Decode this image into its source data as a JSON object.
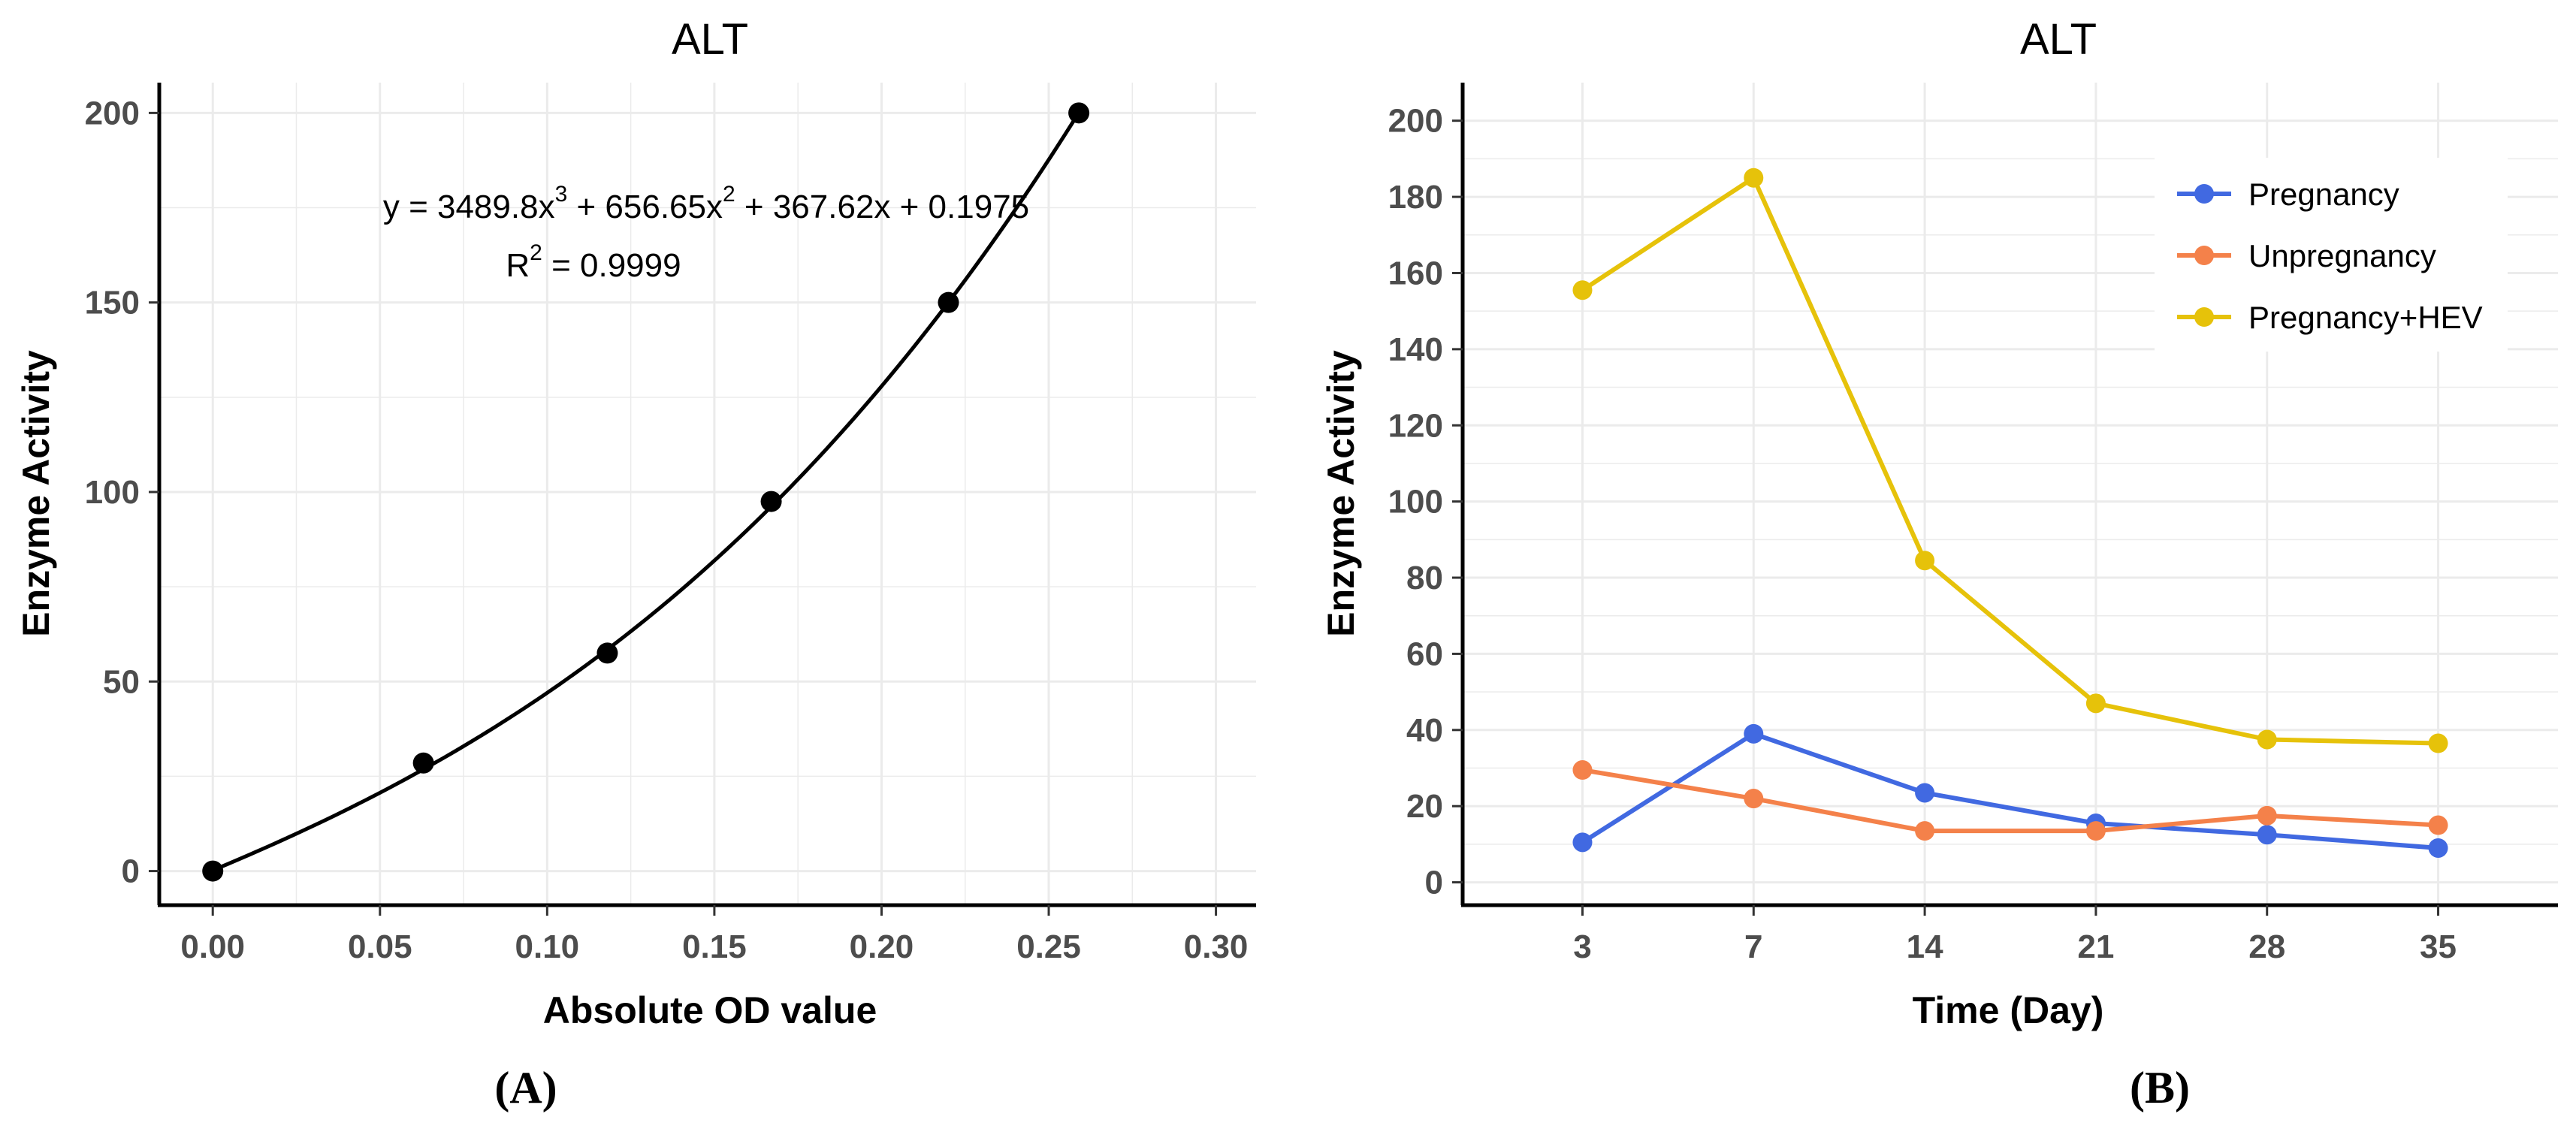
{
  "chart_data": [
    {
      "id": "A",
      "type": "scatter",
      "title": "ALT",
      "xlabel": "Absolute OD value",
      "ylabel": "Enzyme Activity",
      "xlim": [
        -0.016,
        0.312
      ],
      "ylim": [
        -9,
        208
      ],
      "xticks": [
        0.0,
        0.05,
        0.1,
        0.15,
        0.2,
        0.25,
        0.3
      ],
      "xtick_labels": [
        "0.00",
        "0.05",
        "0.10",
        "0.15",
        "0.20",
        "0.25",
        "0.30"
      ],
      "yticks": [
        0,
        50,
        100,
        150,
        200
      ],
      "ytick_labels": [
        "0",
        "50",
        "100",
        "150",
        "200"
      ],
      "points": {
        "x": [
          0.0,
          0.063,
          0.118,
          0.167,
          0.22,
          0.259
        ],
        "y": [
          0,
          28.5,
          57.5,
          97.5,
          150,
          200
        ]
      },
      "fit": {
        "coefficients": [
          3489.8,
          656.65,
          367.62,
          0.1975
        ],
        "x_range": [
          0.0,
          0.259
        ]
      },
      "annotation": {
        "equation_parts": [
          "y = 3489.8x",
          "3",
          " + 656.65x",
          "2",
          " + 367.62x + 0.1975"
        ],
        "r2_parts": [
          "R",
          "2",
          " = 0.9999"
        ]
      },
      "grid": true,
      "colors": {
        "point": "#000000",
        "line": "#000000",
        "grid": "#ebebeb"
      }
    },
    {
      "id": "B",
      "type": "line",
      "title": "ALT",
      "xlabel": "Time (Day)",
      "ylabel": "Enzyme Activity",
      "categories": [
        "3",
        "7",
        "14",
        "21",
        "28",
        "35"
      ],
      "ylim": [
        -6,
        210
      ],
      "yticks": [
        0,
        20,
        40,
        60,
        80,
        100,
        120,
        140,
        160,
        180,
        200
      ],
      "ytick_labels": [
        "0",
        "20",
        "40",
        "60",
        "80",
        "100",
        "120",
        "140",
        "160",
        "180",
        "200"
      ],
      "series": [
        {
          "name": "Pregnancy",
          "values": [
            10.5,
            39,
            23.5,
            15.5,
            12.5,
            9
          ],
          "color": "#4169e1"
        },
        {
          "name": "Unpregnancy",
          "values": [
            29.5,
            22,
            13.5,
            13.5,
            17.5,
            15
          ],
          "color": "#f4814a"
        },
        {
          "name": "Pregnancy+HEV",
          "values": [
            155.5,
            185,
            84.5,
            47,
            37.5,
            36.5
          ],
          "color": "#e6c20a"
        }
      ],
      "legend_position": "top-right",
      "grid": true,
      "colors": {
        "grid": "#ebebeb"
      }
    }
  ],
  "panel_labels": {
    "a": "(A)",
    "b": "(B)"
  }
}
